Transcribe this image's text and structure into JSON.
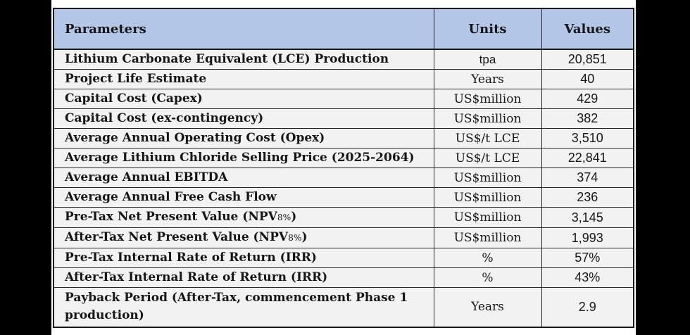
{
  "style": {
    "page_background": "#000000",
    "panel_background": "#ffffff",
    "header_bg": "#b4c6e7",
    "row_bg": "#f2f2f2",
    "border_color": "#1a1a1a",
    "text_color": "#161616"
  },
  "table": {
    "header": {
      "parameters": "Parameters",
      "units": "Units",
      "values": "Values"
    },
    "rows": [
      {
        "param_pre": "Lithium Carbonate Equivalent (LCE) Production",
        "unit": "tpa",
        "value": "20,851"
      },
      {
        "param_pre": "Project Life Estimate",
        "unit": "Years",
        "value": "40"
      },
      {
        "param_pre": "Capital Cost (Capex)",
        "unit": "US$million",
        "value": "429"
      },
      {
        "param_pre": "Capital Cost (ex-contingency)",
        "unit": "US$million",
        "value": "382"
      },
      {
        "param_pre": "Average Annual Operating Cost (Opex)",
        "unit": "US$/t LCE",
        "value": "3,510"
      },
      {
        "param_pre": "Average Lithium Chloride Selling Price (2025-2064)",
        "unit": "US$/t LCE",
        "value": "22,841"
      },
      {
        "param_pre": "Average Annual EBITDA",
        "unit": "US$million",
        "value": "374"
      },
      {
        "param_pre": "Average Annual Free Cash Flow",
        "unit": "US$million",
        "value": "236"
      },
      {
        "param_pre": "Pre-Tax Net Present Value (NPV",
        "param_sub": "8%",
        "param_post": ")",
        "unit": "US$million",
        "value": "3,145"
      },
      {
        "param_pre": "After-Tax Net Present Value (NPV",
        "param_sub": "8%",
        "param_post": ")",
        "unit": "US$million",
        "value": "1,993"
      },
      {
        "param_pre": "Pre-Tax Internal Rate of Return (IRR)",
        "unit": "%",
        "value": "57%"
      },
      {
        "param_pre": "After-Tax Internal Rate of Return (IRR)",
        "unit": "%",
        "value": "43%"
      },
      {
        "param_pre": "Payback Period (After-Tax, commencement Phase 1 production)",
        "unit": "Years",
        "value": "2.9"
      }
    ]
  }
}
